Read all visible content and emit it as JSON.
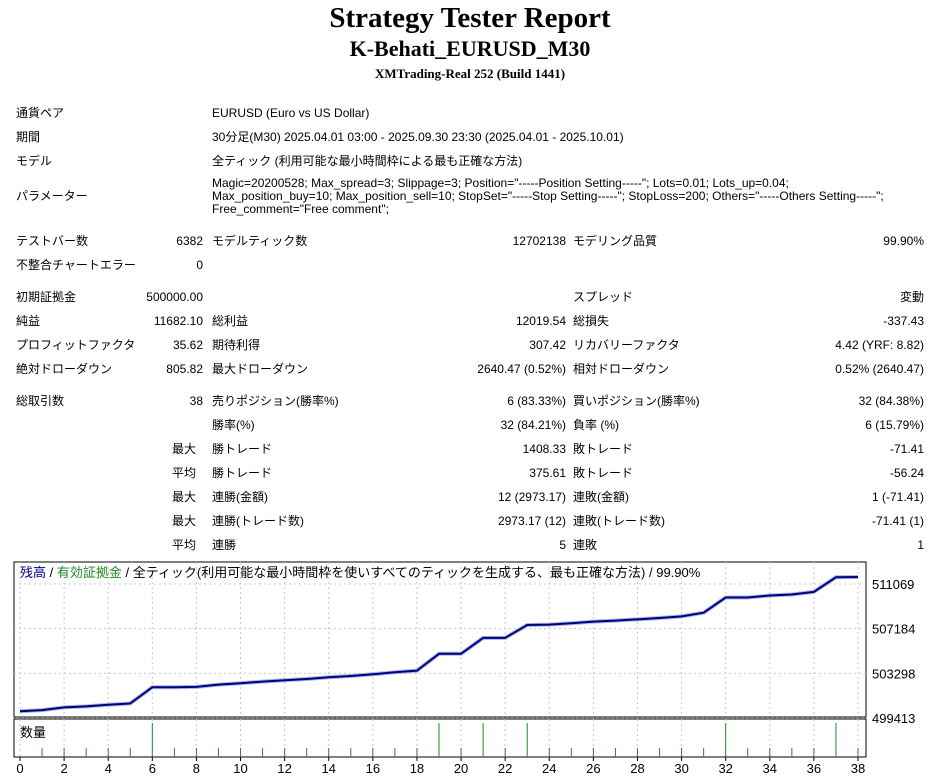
{
  "header": {
    "title": "Strategy Tester Report",
    "subtitle": "K-Behati_EURUSD_M30",
    "build": "XMTrading-Real 252 (Build 1441)"
  },
  "info": [
    {
      "label": "通貨ペア",
      "value": "EURUSD (Euro vs US Dollar)"
    },
    {
      "label": "期間",
      "value": "30分足(M30) 2025.04.01 03:00 - 2025.09.30 23:30 (2025.04.01 - 2025.10.01)"
    },
    {
      "label": "モデル",
      "value": "全ティック (利用可能な最小時間枠による最も正確な方法)"
    },
    {
      "label": "パラメーター",
      "value": "Magic=20200528; Max_spread=3; Slippage=3; Position=\"-----Position Setting-----\"; Lots=0.01; Lots_up=0.04; Max_position_buy=10; Max_position_sell=10; StopSet=\"-----Stop Setting-----\"; StopLoss=200; Others=\"-----Others Setting-----\"; Free_comment=\"Free comment\";"
    }
  ],
  "rows": [
    [
      "テストバー数",
      "6382",
      "モデルティック数",
      "12702138",
      "モデリング品質",
      "99.90%"
    ],
    [
      "不整合チャートエラー",
      "0",
      "",
      "",
      "",
      ""
    ],
    [
      "初期証拠金",
      "500000.00",
      "",
      "",
      "スプレッド",
      "変動"
    ],
    [
      "純益",
      "11682.10",
      "総利益",
      "12019.54",
      "総損失",
      "-337.43"
    ],
    [
      "プロフィットファクタ",
      "35.62",
      "期待利得",
      "307.42",
      "リカバリーファクタ",
      "4.42 (YRF: 8.82)"
    ],
    [
      "絶対ドローダウン",
      "805.82",
      "最大ドローダウン",
      "2640.47 (0.52%)",
      "相対ドローダウン",
      "0.52% (2640.47)"
    ],
    [
      "総取引数",
      "38",
      "売りポジション(勝率%)",
      "6 (83.33%)",
      "買いポジション(勝率%)",
      "32 (84.38%)"
    ],
    [
      "",
      "",
      "勝率(%)",
      "32 (84.21%)",
      "負率 (%)",
      "6 (15.79%)"
    ],
    [
      "",
      "最大",
      "勝トレード",
      "1408.33",
      "敗トレード",
      "-71.41"
    ],
    [
      "",
      "平均",
      "勝トレード",
      "375.61",
      "敗トレード",
      "-56.24"
    ],
    [
      "",
      "最大",
      "連勝(金額)",
      "12 (2973.17)",
      "連敗(金額)",
      "1 (-71.41)"
    ],
    [
      "",
      "最大",
      "連勝(トレード数)",
      "2973.17 (12)",
      "連敗(トレード数)",
      "-71.41 (1)"
    ],
    [
      "",
      "平均",
      "連勝",
      "5",
      "連敗",
      "1"
    ]
  ],
  "chart_data": {
    "type": "line",
    "legend": {
      "balance": "残高",
      "sep1": " / ",
      "equity": "有効証拠金",
      "rest": " / 全ティック(利用可能な最小時間枠を使いすべてのティックを生成する、最も正確な方法) / 99.90%"
    },
    "colors": {
      "balance": "#000080",
      "equity": "#228b22",
      "volume": "#228b22",
      "grid": "#c8c8c8"
    },
    "x": [
      0,
      1,
      2,
      3,
      4,
      5,
      6,
      7,
      8,
      9,
      10,
      11,
      12,
      13,
      14,
      15,
      16,
      17,
      18,
      19,
      20,
      21,
      22,
      23,
      24,
      25,
      26,
      27,
      28,
      29,
      30,
      31,
      32,
      33,
      34,
      35,
      36,
      37,
      38
    ],
    "balance": [
      500000,
      500100,
      500335,
      500420,
      500565,
      500680,
      502090,
      502090,
      502120,
      502320,
      502435,
      502580,
      502700,
      502810,
      502955,
      503070,
      503215,
      503390,
      503530,
      505000,
      505000,
      506380,
      506380,
      507505,
      507535,
      507650,
      507795,
      507880,
      507995,
      508110,
      508255,
      508570,
      509895,
      509895,
      510070,
      510155,
      510385,
      511655,
      511682
    ],
    "volume_label": "数量",
    "volume": [
      0,
      0.01,
      0.01,
      0.01,
      0.01,
      0.01,
      0.04,
      0.01,
      0.01,
      0.01,
      0.01,
      0.01,
      0.01,
      0.01,
      0.01,
      0.01,
      0.01,
      0.01,
      0.01,
      0.04,
      0.01,
      0.04,
      0.01,
      0.04,
      0.01,
      0.01,
      0.01,
      0.01,
      0.01,
      0.01,
      0.01,
      0.01,
      0.04,
      0.01,
      0.01,
      0.01,
      0.01,
      0.04,
      0.01
    ],
    "yticks": [
      "511069",
      "507184",
      "503298",
      "499413"
    ],
    "ylim": [
      499413,
      511069
    ],
    "xticks": [
      "0",
      "2",
      "4",
      "6",
      "8",
      "10",
      "12",
      "14",
      "16",
      "18",
      "20",
      "22",
      "24",
      "26",
      "28",
      "30",
      "32",
      "34",
      "36",
      "38"
    ],
    "xlim": [
      0,
      38
    ],
    "grid": true
  }
}
